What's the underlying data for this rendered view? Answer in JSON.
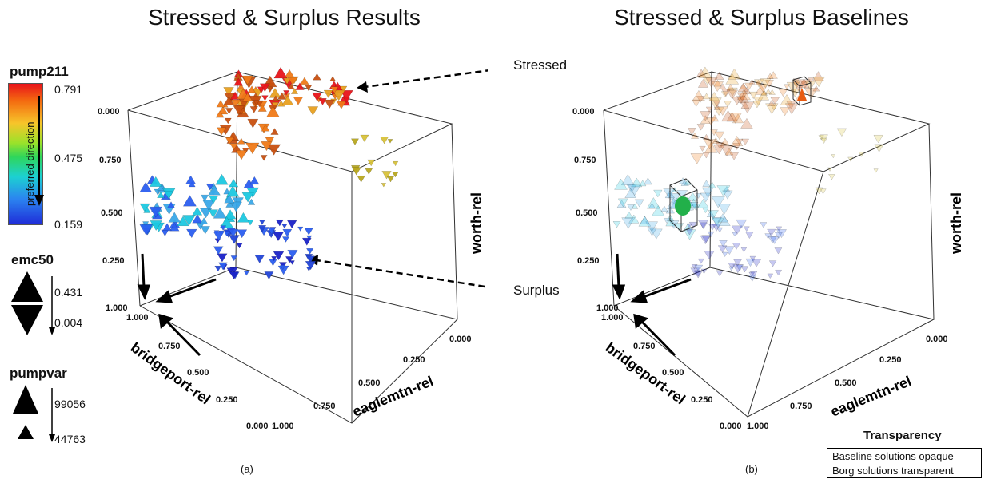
{
  "titles": {
    "left": "Stressed & Surplus Results",
    "right": "Stressed & Surplus Baselines"
  },
  "legend": {
    "color": {
      "title": "pump211",
      "max": "0.791",
      "mid": "0.475",
      "min": "0.159",
      "direction_label": "preferred direction"
    },
    "orientation": {
      "title": "emc50",
      "max": "0.431",
      "min": "0.004"
    },
    "size": {
      "title": "pumpvar",
      "max": "99056",
      "min": "44763"
    }
  },
  "annotations": {
    "stressed": "Stressed",
    "surplus": "Surplus"
  },
  "captions": {
    "left": "(a)",
    "right": "(b)"
  },
  "transparency": {
    "title": "Transparency",
    "line1": "Baseline solutions opaque",
    "line2": "Borg solutions transparent"
  },
  "colors": {
    "high": "#e8141a",
    "orange": "#f07a18",
    "yellow": "#d8c23a",
    "green": "#2fd65a",
    "cyan": "#1cc8e0",
    "blue": "#2b5ef0",
    "navy": "#1a22c8"
  },
  "chart_data": [
    {
      "type": "scatter",
      "title": "Stressed & Surplus Results",
      "axes": {
        "x": {
          "label": "eaglemtn-rel",
          "ticks": [
            "0.000",
            "0.250",
            "0.500",
            "0.750",
            "1.000"
          ]
        },
        "y": {
          "label": "worth-rel",
          "ticks": [
            "0.000",
            "0.250",
            "0.500",
            "0.750",
            "1.000"
          ]
        },
        "z": {
          "label": "bridgeport-rel",
          "ticks": [
            "0.000",
            "0.250",
            "0.500",
            "0.750",
            "1.000"
          ]
        }
      },
      "encodings": {
        "color": "pump211",
        "orientation": "emc50",
        "size": "pumpvar"
      },
      "clusters": [
        {
          "name": "Stressed",
          "pump211_range": [
            0.6,
            0.791
          ]
        },
        {
          "name": "Surplus",
          "pump211_range": [
            0.159,
            0.35
          ]
        }
      ]
    },
    {
      "type": "scatter",
      "title": "Stressed & Surplus Baselines",
      "axes": {
        "x": {
          "label": "eaglemtn-rel",
          "ticks": [
            "0.000",
            "0.250",
            "0.500",
            "0.750",
            "1.000"
          ]
        },
        "y": {
          "label": "worth-rel",
          "ticks": [
            "0.000",
            "0.250",
            "0.500",
            "0.750",
            "1.000"
          ]
        },
        "z": {
          "label": "bridgeport-rel",
          "ticks": [
            "0.000",
            "0.250",
            "0.500",
            "0.750",
            "1.000"
          ]
        }
      },
      "encodings": {
        "color": "pump211",
        "orientation": "emc50",
        "size": "pumpvar"
      }
    }
  ]
}
